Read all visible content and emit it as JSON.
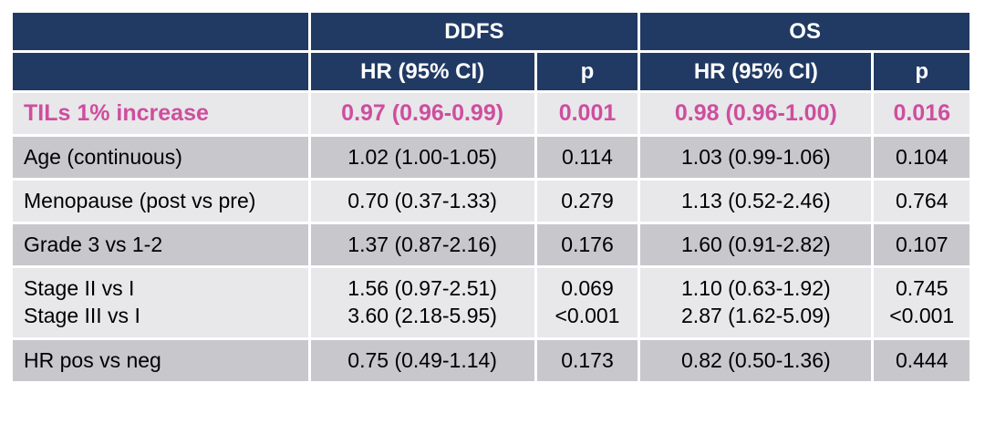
{
  "colors": {
    "header_bg": "#213A64",
    "header_text": "#FFFFFF",
    "highlight_pink": "#CE4E9E",
    "row_light": "#E8E7EA",
    "row_dark": "#C7C7CC",
    "body_text": "#000000",
    "page_bg": "#FFFFFF"
  },
  "table": {
    "group_headers": {
      "corner": "",
      "ddfs": "DDFS",
      "os": "OS"
    },
    "column_headers": {
      "corner": "",
      "hr_ddfs": "HR (95% CI)",
      "p_ddfs": "p",
      "hr_os": "HR (95% CI)",
      "p_os": "p"
    },
    "rows": [
      {
        "label": [
          "TILs 1% increase"
        ],
        "ddfs_hr": [
          "0.97 (0.96-0.99)"
        ],
        "ddfs_p": [
          "0.001"
        ],
        "os_hr": [
          "0.98 (0.96-1.00)"
        ],
        "os_p": [
          "0.016"
        ],
        "highlight": true,
        "shade": "light"
      },
      {
        "label": [
          "Age (continuous)"
        ],
        "ddfs_hr": [
          "1.02 (1.00-1.05)"
        ],
        "ddfs_p": [
          "0.114"
        ],
        "os_hr": [
          "1.03 (0.99-1.06)"
        ],
        "os_p": [
          "0.104"
        ],
        "highlight": false,
        "shade": "dark"
      },
      {
        "label": [
          "Menopause (post vs pre)"
        ],
        "ddfs_hr": [
          "0.70 (0.37-1.33)"
        ],
        "ddfs_p": [
          "0.279"
        ],
        "os_hr": [
          "1.13 (0.52-2.46)"
        ],
        "os_p": [
          "0.764"
        ],
        "highlight": false,
        "shade": "light"
      },
      {
        "label": [
          "Grade 3 vs 1-2"
        ],
        "ddfs_hr": [
          "1.37 (0.87-2.16)"
        ],
        "ddfs_p": [
          "0.176"
        ],
        "os_hr": [
          "1.60 (0.91-2.82)"
        ],
        "os_p": [
          "0.107"
        ],
        "highlight": false,
        "shade": "dark"
      },
      {
        "label": [
          "Stage II vs I",
          "Stage III vs I"
        ],
        "ddfs_hr": [
          "1.56 (0.97-2.51)",
          "3.60 (2.18-5.95)"
        ],
        "ddfs_p": [
          "0.069",
          "<0.001"
        ],
        "os_hr": [
          "1.10 (0.63-1.92)",
          "2.87 (1.62-5.09)"
        ],
        "os_p": [
          "0.745",
          "<0.001"
        ],
        "highlight": false,
        "shade": "light"
      },
      {
        "label": [
          "HR pos vs neg"
        ],
        "ddfs_hr": [
          "0.75 (0.49-1.14)"
        ],
        "ddfs_p": [
          "0.173"
        ],
        "os_hr": [
          "0.82 (0.50-1.36)"
        ],
        "os_p": [
          "0.444"
        ],
        "highlight": false,
        "shade": "dark"
      }
    ]
  }
}
